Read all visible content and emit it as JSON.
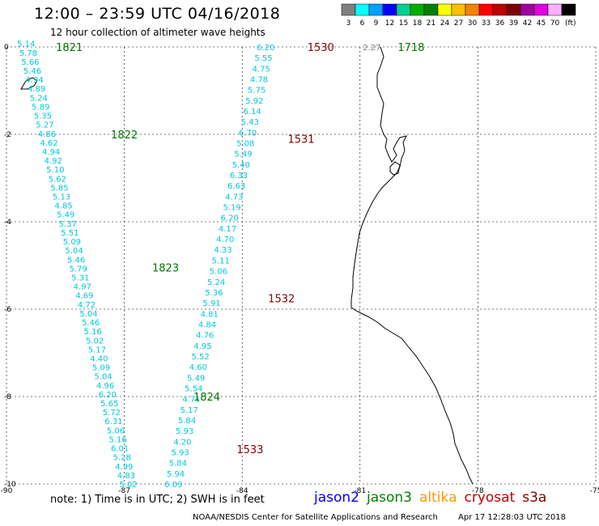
{
  "header": {
    "title": "12:00 – 23:59 UTC 04/16/2018",
    "subtitle": "12 hour collection of altimeter wave heights"
  },
  "scale": {
    "unit": "(ft)",
    "bins": [
      {
        "label": "3",
        "color": "#808080"
      },
      {
        "label": "6",
        "color": "#00ffff"
      },
      {
        "label": "9",
        "color": "#00a0ff"
      },
      {
        "label": "12",
        "color": "#0000ff"
      },
      {
        "label": "15",
        "color": "#00d090"
      },
      {
        "label": "18",
        "color": "#00b000"
      },
      {
        "label": "21",
        "color": "#008000"
      },
      {
        "label": "24",
        "color": "#ffff00"
      },
      {
        "label": "27",
        "color": "#ffc000"
      },
      {
        "label": "30",
        "color": "#ff8000"
      },
      {
        "label": "33",
        "color": "#ff0000"
      },
      {
        "label": "36",
        "color": "#c00000"
      },
      {
        "label": "39",
        "color": "#800000"
      },
      {
        "label": "42",
        "color": "#a000a0"
      },
      {
        "label": "45",
        "color": "#e000e0"
      },
      {
        "label": "70",
        "color": "#ffb0ff"
      },
      {
        "label": "",
        "color": "#000000"
      }
    ]
  },
  "axes": {
    "y_ticks": [
      "0",
      "-2",
      "-4",
      "-6",
      "-8",
      "-10"
    ],
    "x_ticks": [
      "-90",
      "-87",
      "-84",
      "-81",
      "-78",
      "-75"
    ]
  },
  "tracks": [
    {
      "name": "west-descending",
      "color": "#00c8d8",
      "start": [
        -89.5,
        0.08
      ],
      "end": [
        -86.9,
        -10.0
      ],
      "values": [
        "5.14",
        "5.78",
        "5.66",
        "5.46",
        "4.94",
        "4.89",
        "5.24",
        "5.89",
        "5.35",
        "5.27",
        "4.86",
        "4.62",
        "4.94",
        "4.92",
        "5.10",
        "5.62",
        "5.85",
        "5.13",
        "4.85",
        "5.49",
        "5.37",
        "5.51",
        "5.09",
        "5.04",
        "5.46",
        "5.79",
        "5.31",
        "4.97",
        "4.69",
        "4.72",
        "5.04",
        "5.46",
        "5.16",
        "5.02",
        "5.17",
        "4.40",
        "5.09",
        "5.04",
        "4.96",
        "6.20",
        "5.65",
        "5.72",
        "6.31",
        "5.06",
        "5.16",
        "6.01",
        "5.28",
        "4.99",
        "4.83",
        "5.02"
      ]
    },
    {
      "name": "east-ascending",
      "color": "#00c8d8",
      "start": [
        -85.75,
        -10.0
      ],
      "end": [
        -83.4,
        0.0
      ],
      "values": [
        "6.09",
        "5.94",
        "5.84",
        "5.93",
        "4.20",
        "5.93",
        "5.84",
        "5.17",
        "4.71",
        "5.54",
        "5.49",
        "4.60",
        "5.52",
        "4.95",
        "4.76",
        "4.84",
        "4.81",
        "5.91",
        "5.36",
        "5.24",
        "5.06",
        "5.11",
        "4.33",
        "4.70",
        "4.17",
        "6.20",
        "5.19",
        "4.73",
        "6.63",
        "6.33",
        "5.40",
        "5.49",
        "5.08",
        "6.70",
        "5.43",
        "6.14",
        "5.92",
        "5.75",
        "4.78",
        "4.75",
        "5.55",
        "6.20"
      ]
    }
  ],
  "time_labels": [
    {
      "text": "1821",
      "lon": -88.4,
      "lat": 0.0,
      "color": "#007800"
    },
    {
      "text": "1822",
      "lon": -87.0,
      "lat": -2.0,
      "color": "#007800"
    },
    {
      "text": "1823",
      "lon": -85.95,
      "lat": -5.05,
      "color": "#007800"
    },
    {
      "text": "1824",
      "lon": -84.9,
      "lat": -8.0,
      "color": "#007800"
    },
    {
      "text": "1530",
      "lon": -82.0,
      "lat": 0.0,
      "color": "#800000"
    },
    {
      "text": "1531",
      "lon": -82.5,
      "lat": -2.1,
      "color": "#800000"
    },
    {
      "text": "1532",
      "lon": -83.0,
      "lat": -5.75,
      "color": "#800000"
    },
    {
      "text": "1533",
      "lon": -83.8,
      "lat": -9.2,
      "color": "#800000"
    },
    {
      "text": "1718",
      "lon": -79.7,
      "lat": 0.0,
      "color": "#007800"
    }
  ],
  "point_values": [
    {
      "text": "2.27",
      "lon": -80.7,
      "lat": 0.0,
      "color": "#808080"
    }
  ],
  "satellite_legend": [
    {
      "name": "jason2",
      "color": "#0000ff"
    },
    {
      "name": "jason3",
      "color": "#008000"
    },
    {
      "name": "altika",
      "color": "#ff9900"
    },
    {
      "name": "cryosat",
      "color": "#c00000"
    },
    {
      "name": "s3a",
      "color": "#800000"
    }
  ],
  "footer": {
    "note": "note:  1) Time is in UTC; 2) SWH is in feet",
    "credit": "NOAA/NESDIS Center for Satellite Applications and Research",
    "timestamp": "Apr 17 12:28:03 UTC 2018"
  }
}
